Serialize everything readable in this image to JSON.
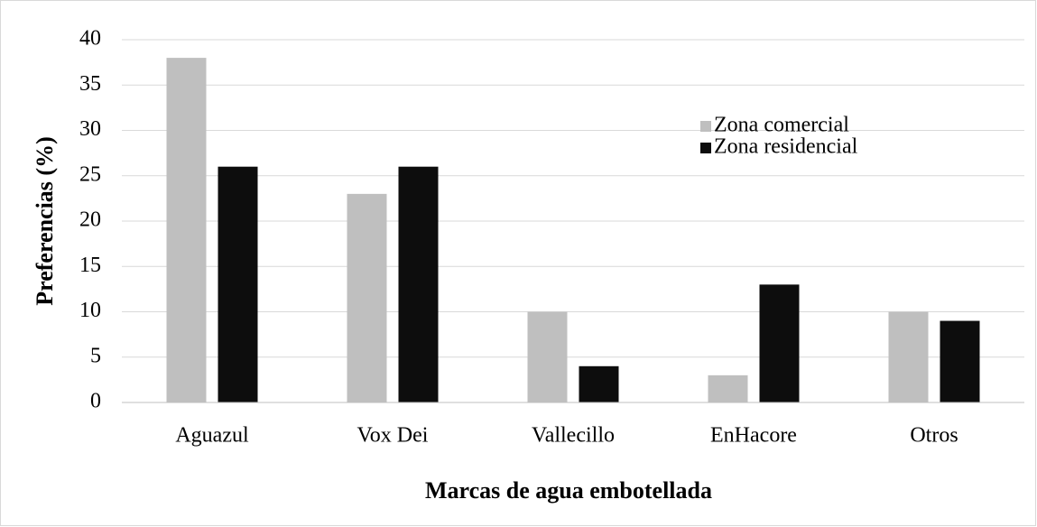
{
  "chart_data": {
    "type": "bar",
    "x_label": "Marcas de agua embotellada",
    "y_label": "Preferencias (%)",
    "categories": [
      "Aguazul",
      "Vox Dei",
      "Vallecillo",
      "EnHacore",
      "Otros"
    ],
    "series": [
      {
        "name": "Zona comercial",
        "color": "#bfbfbf",
        "values": [
          38,
          23,
          10,
          3,
          10
        ]
      },
      {
        "name": "Zona residencial",
        "color": "#0d0d0d",
        "values": [
          26,
          26,
          4,
          13,
          9
        ]
      }
    ],
    "ylim": [
      0,
      40
    ],
    "yticks": [
      0,
      5,
      10,
      15,
      20,
      25,
      30,
      35,
      40
    ],
    "grid": true,
    "legend": "upper right"
  }
}
